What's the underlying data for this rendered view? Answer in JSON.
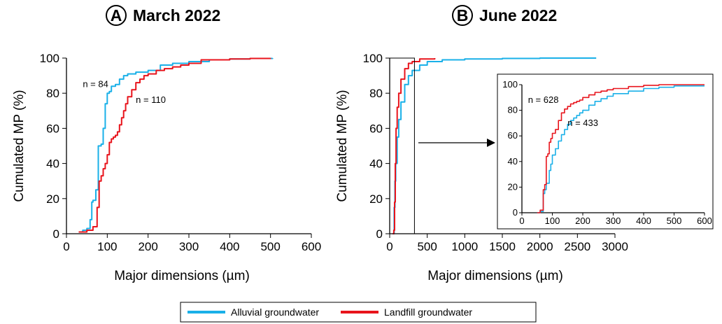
{
  "legend": {
    "items": [
      {
        "label": "Alluvial groundwater",
        "color": "#1ab0e8"
      },
      {
        "label": "Landfill groundwater",
        "color": "#e8141c"
      }
    ]
  },
  "chart_data": [
    {
      "type": "line",
      "panel_letter": "A",
      "title": "March 2022",
      "xlabel": "Major dimensions (µm)",
      "ylabel": "Cumulated MP (%)",
      "xlim": [
        0,
        600
      ],
      "ylim": [
        0,
        100
      ],
      "xticks": [
        0,
        100,
        200,
        300,
        400,
        500,
        600
      ],
      "yticks": [
        0,
        20,
        40,
        60,
        80,
        100
      ],
      "annotations": [
        {
          "text": "n = 84",
          "x": 40,
          "y": 85
        },
        {
          "text": "n = 110",
          "x": 170,
          "y": 76
        }
      ],
      "series": [
        {
          "name": "Alluvial groundwater",
          "color": "#1ab0e8",
          "x": [
            30,
            40,
            50,
            58,
            62,
            65,
            72,
            78,
            85,
            90,
            95,
            100,
            105,
            110,
            120,
            130,
            140,
            150,
            160,
            170,
            180,
            200,
            230,
            260,
            300,
            350,
            400,
            450,
            505
          ],
          "y": [
            1,
            2,
            3,
            8,
            18,
            19,
            25,
            50,
            51,
            60,
            74,
            80,
            81,
            84,
            85,
            88,
            90,
            91,
            91,
            92,
            92,
            93,
            96,
            97,
            98,
            99,
            99.5,
            99.8,
            100
          ]
        },
        {
          "name": "Landfill groundwater",
          "color": "#e8141c",
          "x": [
            30,
            50,
            65,
            75,
            80,
            85,
            90,
            95,
            100,
            105,
            110,
            115,
            120,
            125,
            130,
            135,
            140,
            145,
            150,
            160,
            170,
            180,
            190,
            200,
            220,
            240,
            260,
            280,
            300,
            330,
            400,
            450,
            500
          ],
          "y": [
            1,
            2,
            4,
            15,
            30,
            33,
            37,
            40,
            45,
            52,
            54,
            55,
            56,
            58,
            62,
            66,
            70,
            74,
            78,
            82,
            86,
            88,
            90,
            91,
            93,
            94,
            95,
            96,
            97,
            99,
            99.5,
            99.8,
            100
          ]
        }
      ]
    },
    {
      "type": "line",
      "panel_letter": "B",
      "title": "June 2022",
      "xlabel": "Major dimensions (µm)",
      "ylabel": "Cumulated MP (%)",
      "xlim": [
        0,
        3000
      ],
      "ylim": [
        0,
        100
      ],
      "xticks": [
        0,
        500,
        1000,
        1500,
        2000,
        2500,
        3000
      ],
      "yticks": [
        0,
        20,
        40,
        60,
        80,
        100
      ],
      "series": [
        {
          "name": "Alluvial groundwater",
          "color": "#1ab0e8",
          "x": [
            40,
            60,
            70,
            80,
            100,
            120,
            150,
            200,
            250,
            300,
            400,
            500,
            700,
            1000,
            1500,
            2000,
            2750
          ],
          "y": [
            0,
            15,
            30,
            40,
            55,
            65,
            75,
            85,
            90,
            93,
            96,
            98,
            99,
            99.5,
            99.8,
            100,
            100
          ]
        },
        {
          "name": "Landfill groundwater",
          "color": "#e8141c",
          "x": [
            40,
            55,
            65,
            75,
            85,
            100,
            120,
            150,
            200,
            250,
            300,
            400,
            600
          ],
          "y": [
            0,
            2,
            18,
            40,
            60,
            72,
            80,
            88,
            94,
            97,
            98,
            99.5,
            100
          ]
        }
      ]
    },
    {
      "type": "line",
      "panel_letter": "B",
      "title": "",
      "xlabel": "",
      "ylabel": "",
      "xlim": [
        0,
        600
      ],
      "ylim": [
        0,
        100
      ],
      "xticks": [
        0,
        100,
        200,
        300,
        400,
        500,
        600
      ],
      "yticks": [
        0,
        20,
        40,
        60,
        80,
        100
      ],
      "annotations": [
        {
          "text": "n = 628",
          "x": 20,
          "y": 88
        },
        {
          "text": "n = 433",
          "x": 150,
          "y": 70
        }
      ],
      "series": [
        {
          "name": "Alluvial groundwater",
          "color": "#1ab0e8",
          "x": [
            50,
            60,
            70,
            75,
            80,
            90,
            95,
            100,
            110,
            120,
            130,
            140,
            150,
            160,
            170,
            180,
            190,
            200,
            220,
            240,
            260,
            280,
            300,
            350,
            400,
            450,
            500,
            550,
            600
          ],
          "y": [
            0,
            1,
            15,
            18,
            23,
            33,
            38,
            45,
            50,
            56,
            61,
            65,
            69,
            72,
            74,
            76,
            78,
            80,
            84,
            87,
            89,
            91,
            93,
            95,
            97,
            98,
            99,
            99,
            99
          ]
        },
        {
          "name": "Landfill groundwater",
          "color": "#e8141c",
          "x": [
            50,
            60,
            70,
            75,
            80,
            85,
            90,
            95,
            100,
            110,
            120,
            130,
            140,
            150,
            160,
            170,
            180,
            190,
            200,
            220,
            240,
            260,
            280,
            300,
            350,
            400,
            450,
            500,
            550,
            600
          ],
          "y": [
            0,
            2,
            18,
            22,
            44,
            46,
            55,
            58,
            62,
            65,
            72,
            78,
            81,
            83,
            85,
            86,
            87,
            88,
            90,
            92,
            94,
            95,
            96,
            97,
            98.5,
            99.5,
            100,
            100,
            100,
            100
          ]
        }
      ]
    }
  ]
}
